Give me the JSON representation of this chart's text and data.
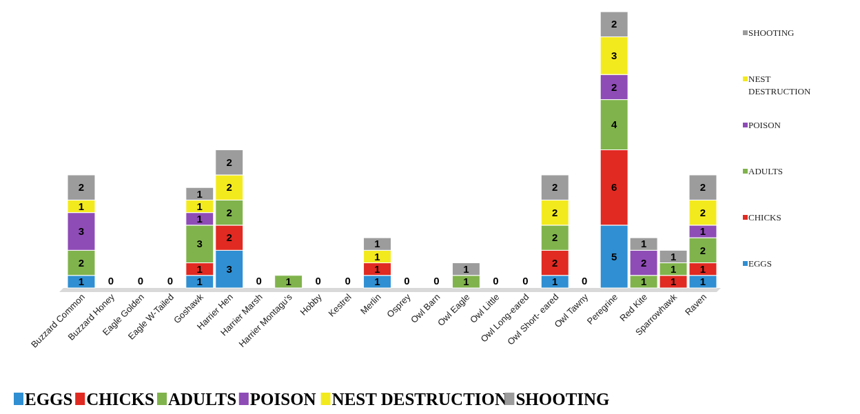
{
  "chart_data": {
    "type": "bar",
    "stacked": true,
    "data_labels": true,
    "legend": "right",
    "categories": [
      "Buzzard Common",
      "Buzzard Honey",
      "Eagle Golden",
      "Eagle W-Tailed",
      "Goshawk",
      "Harrier Hen",
      "Harrier Marsh",
      "Harrier Montagu's",
      "Hobby",
      "Kestrel",
      "Merlin",
      "Osprey",
      "Owl Barn",
      "Owl Eagle",
      "Owl Little",
      "Owl Long-eared",
      "Owl Short- eared",
      "Owl Tawny",
      "Peregrine",
      "Red Kite",
      "Sparrowhawk",
      "Raven"
    ],
    "series": [
      {
        "name": "EGGS",
        "color": "#2f8fd2",
        "values": [
          1,
          0,
          0,
          0,
          1,
          3,
          0,
          null,
          0,
          0,
          1,
          0,
          0,
          null,
          0,
          0,
          1,
          0,
          5,
          null,
          null,
          1
        ]
      },
      {
        "name": "CHICKS",
        "color": "#e02a22",
        "values": [
          null,
          null,
          null,
          null,
          1,
          2,
          null,
          null,
          null,
          null,
          1,
          null,
          null,
          null,
          null,
          null,
          2,
          null,
          6,
          null,
          1,
          1
        ]
      },
      {
        "name": "ADULTS",
        "color": "#80b34c",
        "values": [
          2,
          null,
          null,
          null,
          3,
          2,
          null,
          1,
          null,
          null,
          null,
          null,
          null,
          1,
          null,
          null,
          2,
          null,
          4,
          1,
          1,
          2
        ]
      },
      {
        "name": "POISON",
        "color": "#8e4cb6",
        "values": [
          3,
          null,
          null,
          null,
          1,
          null,
          null,
          null,
          null,
          null,
          null,
          null,
          null,
          null,
          null,
          null,
          null,
          null,
          2,
          2,
          null,
          1
        ]
      },
      {
        "name": "NEST DESTRUCTION",
        "color": "#f3ea1e",
        "values": [
          1,
          null,
          null,
          null,
          1,
          2,
          null,
          null,
          null,
          null,
          1,
          null,
          null,
          null,
          null,
          null,
          2,
          null,
          3,
          null,
          null,
          2
        ]
      },
      {
        "name": "SHOOTING",
        "color": "#9c9c9c",
        "values": [
          2,
          null,
          null,
          null,
          1,
          2,
          null,
          null,
          null,
          null,
          1,
          null,
          null,
          1,
          null,
          null,
          2,
          null,
          2,
          1,
          1,
          2
        ]
      }
    ]
  }
}
